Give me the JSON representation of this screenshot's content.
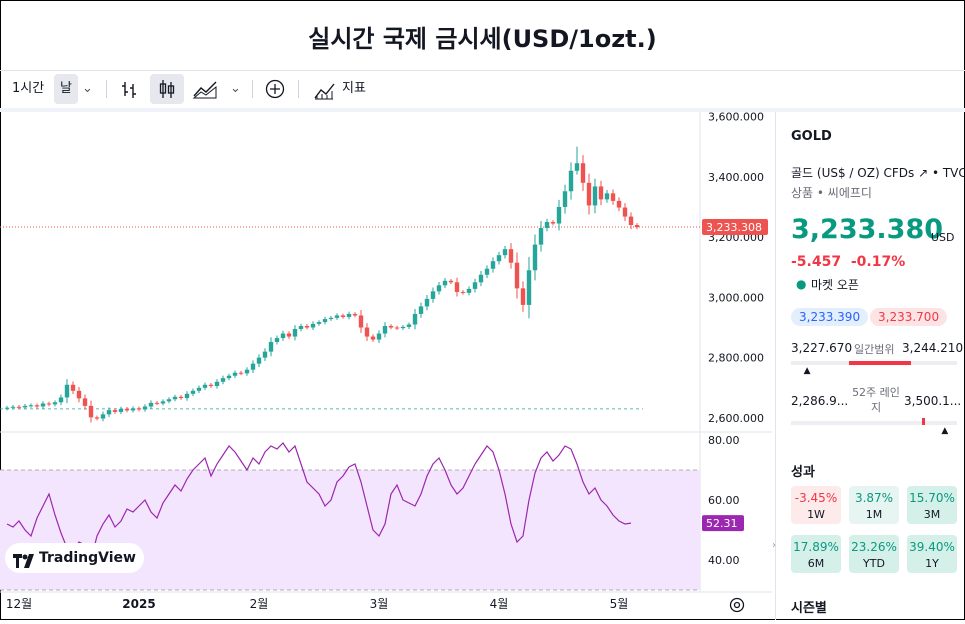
{
  "page_title": "실시간 국제 금시세(USD/1ozt.)",
  "toolbar": {
    "interval": "1시간",
    "period": "날",
    "indicators_label": "지표"
  },
  "chart_data": {
    "type": "candlestick",
    "main": {
      "y_ticks": [
        "3,600.000",
        "3,400.000",
        "3,200.000",
        "3,000.000",
        "2,800.000",
        "2,600.000"
      ],
      "y_tick_values": [
        3600,
        3400,
        3200,
        3000,
        2800,
        2600
      ],
      "ylim": [
        2560,
        3605
      ],
      "last_price_label": "3,233.308",
      "last_price": 3233.308,
      "baseline": 2630,
      "closes": [
        2634,
        2637,
        2635,
        2640,
        2642,
        2638,
        2648,
        2645,
        2652,
        2668,
        2710,
        2690,
        2665,
        2640,
        2602,
        2598,
        2612,
        2626,
        2620,
        2630,
        2625,
        2632,
        2628,
        2638,
        2650,
        2648,
        2655,
        2662,
        2670,
        2666,
        2680,
        2690,
        2700,
        2710,
        2706,
        2720,
        2732,
        2740,
        2750,
        2748,
        2760,
        2780,
        2800,
        2820,
        2852,
        2865,
        2880,
        2870,
        2895,
        2905,
        2900,
        2912,
        2918,
        2928,
        2932,
        2940,
        2935,
        2945,
        2940,
        2900,
        2870,
        2860,
        2880,
        2905,
        2900,
        2898,
        2902,
        2910,
        2945,
        2970,
        2995,
        3020,
        3040,
        3055,
        3050,
        3018,
        3015,
        3028,
        3050,
        3075,
        3095,
        3120,
        3140,
        3160,
        3115,
        3030,
        2975,
        3090,
        3175,
        3230,
        3250,
        3245,
        3300,
        3352,
        3420,
        3445,
        3380,
        3305,
        3368,
        3325,
        3345,
        3320,
        3298,
        3268,
        3240,
        3233
      ],
      "highs_extra": {
        "95": 3500
      }
    },
    "rsi": {
      "y_ticks": [
        "80.00",
        "60.00",
        "40.00"
      ],
      "y_tick_values": [
        80,
        60,
        40
      ],
      "ylim": [
        30,
        82
      ],
      "band": [
        70,
        30
      ],
      "last_value_label": "52.31",
      "values": [
        52,
        51,
        53,
        50,
        48,
        54,
        58,
        62,
        55,
        49,
        44,
        43,
        46,
        45,
        40,
        48,
        52,
        55,
        51,
        53,
        57,
        56,
        58,
        60,
        56,
        54,
        59,
        62,
        65,
        63,
        67,
        70,
        72,
        74,
        68,
        72,
        75,
        78,
        76,
        73,
        70,
        74,
        72,
        76,
        78,
        77,
        79,
        76,
        78,
        72,
        66,
        64,
        62,
        58,
        60,
        66,
        68,
        71,
        72,
        66,
        58,
        50,
        48,
        52,
        62,
        65,
        60,
        59,
        58,
        62,
        68,
        72,
        74,
        70,
        65,
        62,
        64,
        68,
        72,
        75,
        78,
        76,
        70,
        62,
        52,
        46,
        48,
        60,
        69,
        74,
        76,
        73,
        75,
        78,
        77,
        72,
        66,
        62,
        64,
        60,
        58,
        55,
        53,
        52,
        52.31
      ]
    },
    "x_ticks": [
      "12월",
      "2025",
      "2월",
      "3월",
      "4월",
      "5월"
    ],
    "x_tick_index": [
      2,
      22,
      42,
      62,
      82,
      102
    ]
  },
  "watermark": "TradingView",
  "sidebar": {
    "symbol": "GOLD",
    "full_name": "골드 (US$ / OZ) CFDs",
    "exchange": "TVC",
    "category": "상품 • 씨에프디",
    "price": "3,233.380",
    "currency": "USD",
    "change": "-5.457",
    "change_pct": "-0.17%",
    "market_status": "마켓 오픈",
    "bid": "3,233.390",
    "ask": "3,233.700",
    "day_low": "3,227.670",
    "day_range_label": "일간범위",
    "day_high": "3,244.210",
    "day_position": 0.1,
    "week52_low": "2,286.9...",
    "week52_label": "52주 레인지",
    "week52_high": "3,500.1...",
    "week52_position": 0.93,
    "performance_title": "성과",
    "performance": [
      {
        "value": "-3.45%",
        "label": "1W",
        "positive": false
      },
      {
        "value": "3.87%",
        "label": "1M",
        "positive": true
      },
      {
        "value": "15.70%",
        "label": "3M",
        "positive": true
      },
      {
        "value": "17.89%",
        "label": "6M",
        "positive": true
      },
      {
        "value": "23.26%",
        "label": "YTD",
        "positive": true
      },
      {
        "value": "39.40%",
        "label": "1Y",
        "positive": true
      }
    ],
    "seasonal_title": "시즌별"
  },
  "colors": {
    "up": "#26a69a",
    "down": "#ef5350",
    "rsi_line": "#9c27b0",
    "rsi_band": "#f3e5fd",
    "positive_text": "#089981",
    "negative_text": "#f23645"
  }
}
